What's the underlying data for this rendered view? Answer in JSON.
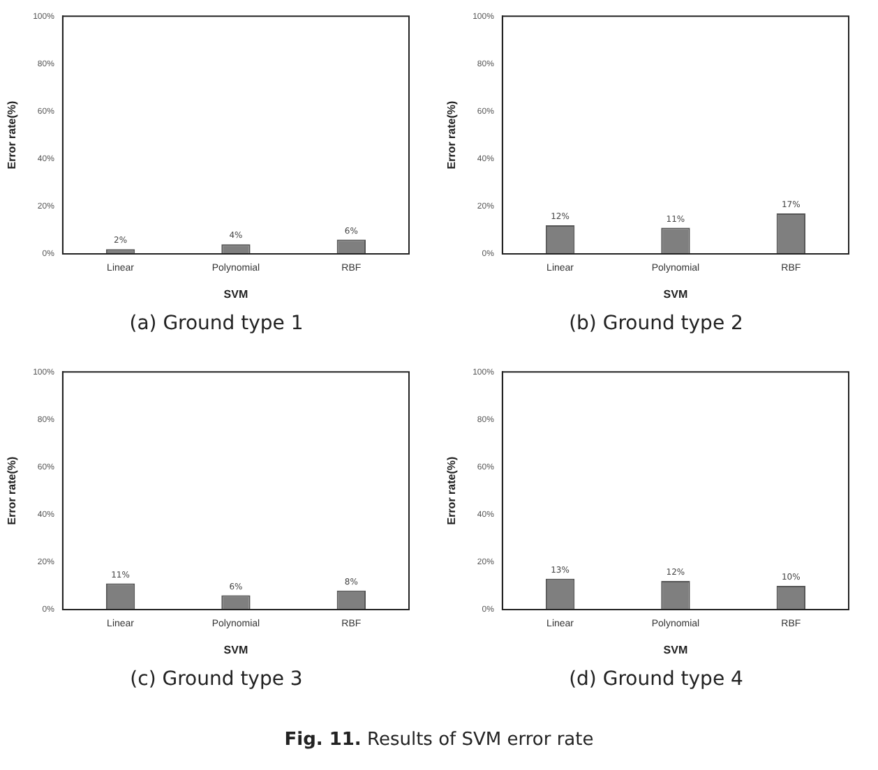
{
  "chart_data": [
    {
      "type": "bar",
      "xlabel": "SVM",
      "ylabel": "Error rate(%)",
      "categories": [
        "Linear",
        "Polynomial",
        "RBF"
      ],
      "values": [
        2,
        4,
        6
      ],
      "value_labels": [
        "2%",
        "4%",
        "6%"
      ],
      "color": "#7f7f7f",
      "ylim": [
        0,
        100
      ],
      "yticks": [
        {
          "value": 0,
          "label": "0%"
        },
        {
          "value": 20,
          "label": "20%"
        },
        {
          "value": 40,
          "label": "40%"
        },
        {
          "value": 60,
          "label": "60%"
        },
        {
          "value": 80,
          "label": "80%"
        },
        {
          "value": 100,
          "label": "100%"
        }
      ],
      "grid": false,
      "legend": false,
      "annotations": [
        "(a) Ground type 1"
      ]
    },
    {
      "type": "bar",
      "xlabel": "SVM",
      "ylabel": "Error rate(%)",
      "categories": [
        "Linear",
        "Polynomial",
        "RBF"
      ],
      "values": [
        12,
        11,
        17
      ],
      "value_labels": [
        "12%",
        "11%",
        "17%"
      ],
      "color": "#7f7f7f",
      "ylim": [
        0,
        100
      ],
      "yticks": [
        {
          "value": 0,
          "label": "0%"
        },
        {
          "value": 20,
          "label": "20%"
        },
        {
          "value": 40,
          "label": "40%"
        },
        {
          "value": 60,
          "label": "60%"
        },
        {
          "value": 80,
          "label": "80%"
        },
        {
          "value": 100,
          "label": "100%"
        }
      ],
      "grid": false,
      "legend": false,
      "annotations": [
        "(b) Ground type 2"
      ]
    },
    {
      "type": "bar",
      "xlabel": "SVM",
      "ylabel": "Error rate(%)",
      "categories": [
        "Linear",
        "Polynomial",
        "RBF"
      ],
      "values": [
        11,
        6,
        8
      ],
      "value_labels": [
        "11%",
        "6%",
        "8%"
      ],
      "color": "#7f7f7f",
      "ylim": [
        0,
        100
      ],
      "yticks": [
        {
          "value": 0,
          "label": "0%"
        },
        {
          "value": 20,
          "label": "20%"
        },
        {
          "value": 40,
          "label": "40%"
        },
        {
          "value": 60,
          "label": "60%"
        },
        {
          "value": 80,
          "label": "80%"
        },
        {
          "value": 100,
          "label": "100%"
        }
      ],
      "grid": false,
      "legend": false,
      "annotations": [
        "(c) Ground type 3"
      ]
    },
    {
      "type": "bar",
      "xlabel": "SVM",
      "ylabel": "Error rate(%)",
      "categories": [
        "Linear",
        "Polynomial",
        "RBF"
      ],
      "values": [
        13,
        12,
        10
      ],
      "value_labels": [
        "13%",
        "12%",
        "10%"
      ],
      "color": "#7f7f7f",
      "ylim": [
        0,
        100
      ],
      "yticks": [
        {
          "value": 0,
          "label": "0%"
        },
        {
          "value": 20,
          "label": "20%"
        },
        {
          "value": 40,
          "label": "40%"
        },
        {
          "value": 60,
          "label": "60%"
        },
        {
          "value": 80,
          "label": "80%"
        },
        {
          "value": 100,
          "label": "100%"
        }
      ],
      "grid": false,
      "legend": false,
      "annotations": [
        "(d) Ground type 4",
        "Fig. 11. Results of SVM error rate"
      ]
    }
  ]
}
